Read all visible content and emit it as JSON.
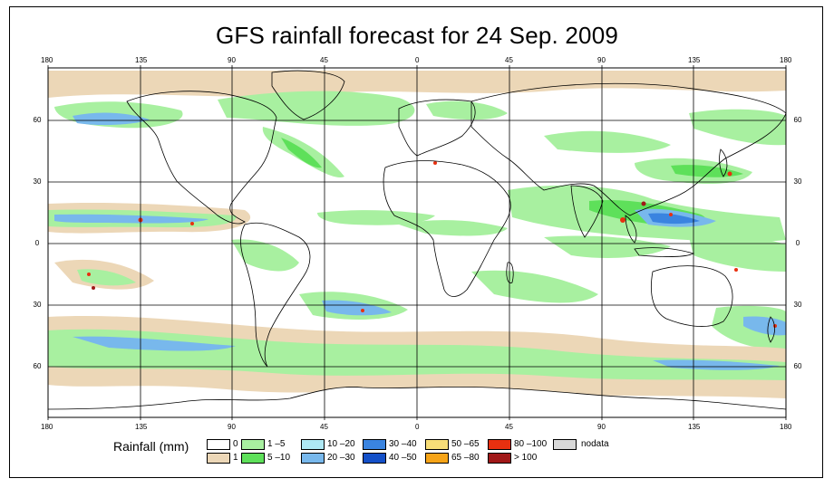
{
  "title": "GFS rainfall forecast for 24 Sep. 2009",
  "axes": {
    "lon_ticks": [
      "180",
      "135",
      "90",
      "45",
      "0",
      "45",
      "90",
      "135",
      "180"
    ],
    "lat_ticks": [
      "60",
      "30",
      "0",
      "30",
      "60"
    ]
  },
  "legend": {
    "title": "Rainfall (mm)",
    "items": [
      {
        "label": "0",
        "color": "#ffffff"
      },
      {
        "label": "1",
        "color": "#ecd7b7"
      },
      {
        "label": "1 –5",
        "color": "#a8f0a0"
      },
      {
        "label": "5 –10",
        "color": "#5ee05a"
      },
      {
        "label": "10 –20",
        "color": "#aee8f4"
      },
      {
        "label": "20 –30",
        "color": "#78b8ec"
      },
      {
        "label": "30 –40",
        "color": "#3a84e0"
      },
      {
        "label": "40 –50",
        "color": "#1450c8"
      },
      {
        "label": "50 –65",
        "color": "#f8de78"
      },
      {
        "label": "65 –80",
        "color": "#f6a418"
      },
      {
        "label": "80 –100",
        "color": "#e83010"
      },
      {
        "label": "> 100",
        "color": "#a01818"
      },
      {
        "label": "nodata",
        "color": "#d8d8d8"
      }
    ]
  }
}
